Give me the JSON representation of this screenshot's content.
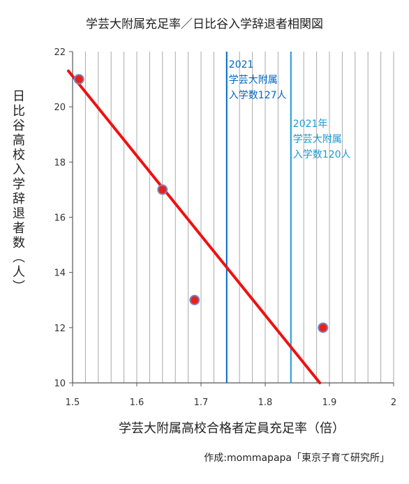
{
  "chart_data": {
    "type": "scatter",
    "title": "学芸大附属充足率／日比谷入学辞退者相関図",
    "xlabel": "学芸大附属高校合格者定員充足率（倍）",
    "ylabel": "日比谷高校入学辞退者数（人）",
    "xlim": [
      1.5,
      2.0
    ],
    "ylim": [
      10,
      22
    ],
    "x_ticks": [
      "1.5",
      "1.6",
      "1.7",
      "1.8",
      "1.9",
      "2"
    ],
    "y_ticks": [
      "10",
      "12",
      "14",
      "16",
      "18",
      "20",
      "22"
    ],
    "grid": {
      "vertical_minor_step": 0.02,
      "horizontal": false
    },
    "points": [
      {
        "x": 1.51,
        "y": 21
      },
      {
        "x": 1.64,
        "y": 17
      },
      {
        "x": 1.69,
        "y": 13
      },
      {
        "x": 1.89,
        "y": 12
      }
    ],
    "trendline": {
      "x1": 1.5,
      "y1": 21.3,
      "x2": 1.885,
      "y2": 10.0
    },
    "vlines": [
      {
        "x": 1.74,
        "color": "#0066c0",
        "label_lines": [
          "2021",
          "学芸大附属",
          "入学数127人"
        ]
      },
      {
        "x": 1.84,
        "color": "#1a9ad6",
        "label_lines": [
          "2021年",
          "学芸大附属",
          "入学数120人"
        ]
      }
    ],
    "colors": {
      "point_fill": "#e8221a",
      "point_stroke": "#7a86c8",
      "trend": "#ee1111",
      "grid": "#a9a9a9"
    }
  },
  "credit": "作成:mommapapa「東京子育て研究所」"
}
